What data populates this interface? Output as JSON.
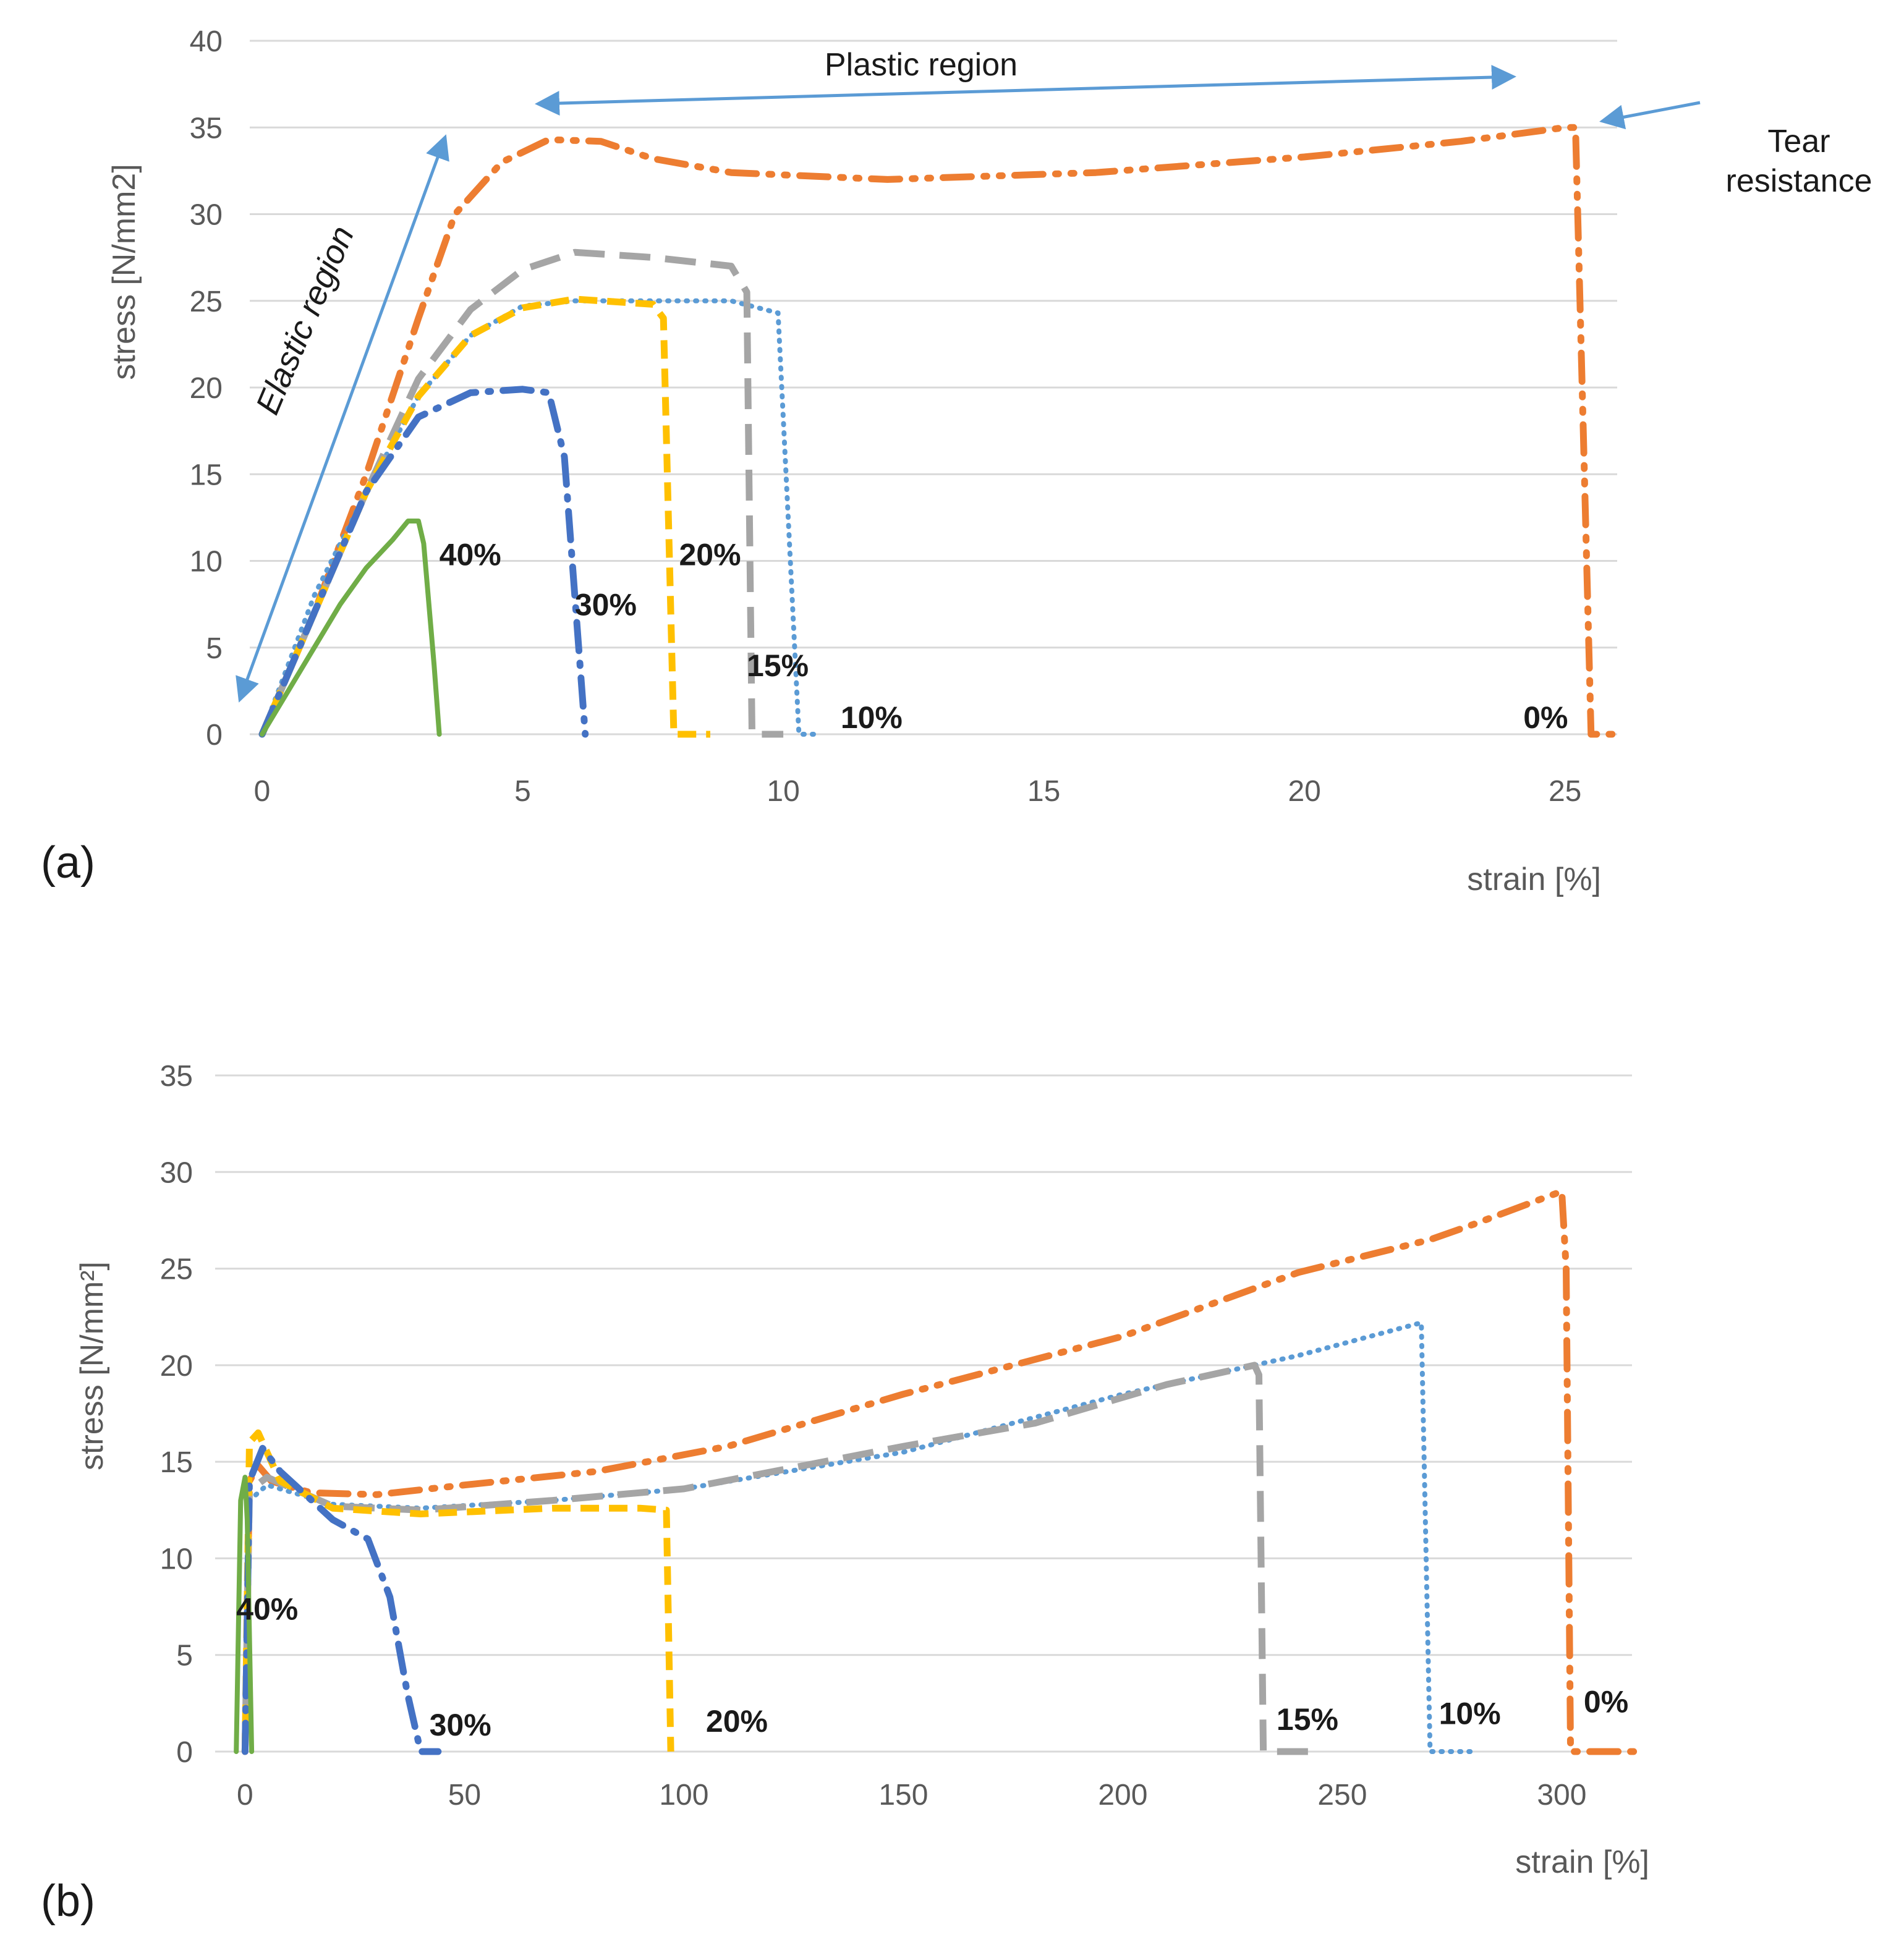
{
  "colors": {
    "s0": "#ed7d31",
    "s10": "#5b9bd5",
    "s15": "#a5a5a5",
    "s20": "#ffc000",
    "s30": "#4472c4",
    "s40": "#70ad47",
    "annotation": "#5b9bd5"
  },
  "chart_data": [
    {
      "panel": "(a)",
      "type": "line",
      "xlabel": "strain [%]",
      "ylabel": "stress [N/mm2]",
      "xlim": [
        0,
        26
      ],
      "ylim": [
        0,
        40
      ],
      "xticks": [
        0,
        5,
        10,
        15,
        20,
        25
      ],
      "yticks": [
        0,
        5,
        10,
        15,
        20,
        25,
        30,
        35,
        40
      ],
      "grid": true,
      "annotations": {
        "plastic": "Plastic region",
        "elastic": "Elastic region",
        "tear_line1": "Tear",
        "tear_line2": "resistance"
      },
      "series": [
        {
          "name": "0%",
          "key": "s0",
          "points": [
            [
              0,
              0
            ],
            [
              1,
              7
            ],
            [
              2,
              15
            ],
            [
              3,
              24
            ],
            [
              3.7,
              30
            ],
            [
              4.6,
              33
            ],
            [
              5.5,
              34.3
            ],
            [
              6.5,
              34.2
            ],
            [
              7.5,
              33.2
            ],
            [
              9,
              32.4
            ],
            [
              12,
              32
            ],
            [
              16,
              32.4
            ],
            [
              20,
              33.3
            ],
            [
              23,
              34.2
            ],
            [
              25,
              35
            ],
            [
              25.2,
              35
            ],
            [
              25.5,
              0
            ],
            [
              26,
              0
            ]
          ],
          "label": {
            "text": "0%",
            "x": 24.2,
            "y": 1
          }
        },
        {
          "name": "10%",
          "key": "s10",
          "points": [
            [
              0,
              0
            ],
            [
              1,
              8
            ],
            [
              2,
              14
            ],
            [
              3,
              19.5
            ],
            [
              4,
              23
            ],
            [
              5,
              24.7
            ],
            [
              6,
              25
            ],
            [
              9,
              25
            ],
            [
              9.9,
              24.3
            ],
            [
              10.3,
              0
            ],
            [
              10.6,
              0
            ]
          ],
          "label": {
            "text": "10%",
            "x": 11.1,
            "y": 1
          }
        },
        {
          "name": "15%",
          "key": "s15",
          "points": [
            [
              0,
              0
            ],
            [
              1,
              7
            ],
            [
              2,
              14
            ],
            [
              3,
              20.5
            ],
            [
              4,
              24.5
            ],
            [
              5,
              26.8
            ],
            [
              6,
              27.8
            ],
            [
              7.5,
              27.5
            ],
            [
              9,
              27
            ],
            [
              9.3,
              25.5
            ],
            [
              9.4,
              0
            ],
            [
              10,
              0
            ]
          ],
          "label": {
            "text": "15%",
            "x": 9.3,
            "y": 4
          }
        },
        {
          "name": "20%",
          "key": "s20",
          "points": [
            [
              0,
              0
            ],
            [
              1,
              7
            ],
            [
              2,
              14
            ],
            [
              3,
              19.5
            ],
            [
              4,
              23
            ],
            [
              5,
              24.6
            ],
            [
              6,
              25.1
            ],
            [
              7.5,
              24.8
            ],
            [
              7.7,
              24
            ],
            [
              7.9,
              0
            ],
            [
              8.6,
              0
            ]
          ],
          "label": {
            "text": "20%",
            "x": 8,
            "y": 10.4
          }
        },
        {
          "name": "30%",
          "key": "s30",
          "points": [
            [
              0,
              0
            ],
            [
              1,
              7
            ],
            [
              2,
              14
            ],
            [
              3,
              18.3
            ],
            [
              4,
              19.7
            ],
            [
              5,
              19.9
            ],
            [
              5.5,
              19.7
            ],
            [
              5.8,
              16
            ],
            [
              6,
              8
            ],
            [
              6.2,
              0
            ]
          ],
          "label": {
            "text": "30%",
            "x": 6.0,
            "y": 7.5
          }
        },
        {
          "name": "40%",
          "key": "s40",
          "points": [
            [
              0,
              0
            ],
            [
              0.5,
              2.5
            ],
            [
              1,
              5
            ],
            [
              1.5,
              7.5
            ],
            [
              2,
              9.6
            ],
            [
              2.5,
              11.2
            ],
            [
              2.8,
              12.3
            ],
            [
              3,
              12.3
            ],
            [
              3.1,
              11
            ],
            [
              3.3,
              4
            ],
            [
              3.4,
              0
            ]
          ],
          "label": {
            "text": "40%",
            "x": 3.4,
            "y": 10.4
          }
        }
      ]
    },
    {
      "panel": "(b)",
      "type": "line",
      "xlabel": "strain [%]",
      "ylabel": "stress [N/mm²]",
      "xlim": [
        -4,
        316
      ],
      "ylim": [
        0,
        35
      ],
      "xticks": [
        0,
        50,
        100,
        150,
        200,
        250,
        300
      ],
      "yticks": [
        0,
        5,
        10,
        15,
        20,
        25,
        30,
        35
      ],
      "grid": true,
      "series": [
        {
          "name": "0%",
          "key": "s0",
          "points": [
            [
              0,
              0
            ],
            [
              1,
              14
            ],
            [
              3,
              14.8
            ],
            [
              6,
              14
            ],
            [
              15,
              13.4
            ],
            [
              30,
              13.3
            ],
            [
              50,
              13.8
            ],
            [
              80,
              14.5
            ],
            [
              110,
              15.8
            ],
            [
              150,
              18.5
            ],
            [
              200,
              21.5
            ],
            [
              240,
              24.8
            ],
            [
              270,
              26.5
            ],
            [
              280,
              27.3
            ],
            [
              300,
              29
            ],
            [
              301,
              25
            ],
            [
              302,
              0
            ],
            [
              318,
              0
            ]
          ],
          "label": {
            "text": "0%",
            "x": 305,
            "y": 2.6
          }
        },
        {
          "name": "10%",
          "key": "s10",
          "points": [
            [
              0,
              0
            ],
            [
              1,
              13
            ],
            [
              5,
              13.8
            ],
            [
              20,
              12.8
            ],
            [
              40,
              12.6
            ],
            [
              70,
              13
            ],
            [
              100,
              13.6
            ],
            [
              150,
              15.5
            ],
            [
              200,
              18.5
            ],
            [
              240,
              20.5
            ],
            [
              268,
              22.2
            ],
            [
              270,
              0
            ],
            [
              280,
              0
            ]
          ],
          "label": {
            "text": "10%",
            "x": 272,
            "y": 2
          }
        },
        {
          "name": "15%",
          "key": "s15",
          "points": [
            [
              0,
              0
            ],
            [
              1,
              13.5
            ],
            [
              5,
              14.2
            ],
            [
              20,
              12.7
            ],
            [
              40,
              12.5
            ],
            [
              70,
              13
            ],
            [
              100,
              13.6
            ],
            [
              150,
              15.8
            ],
            [
              180,
              17
            ],
            [
              210,
              19
            ],
            [
              230,
              20
            ],
            [
              231,
              19.5
            ],
            [
              232,
              0
            ],
            [
              243,
              0
            ]
          ],
          "label": {
            "text": "15%",
            "x": 235,
            "y": 1.7
          }
        },
        {
          "name": "20%",
          "key": "s20",
          "points": [
            [
              0,
              0
            ],
            [
              1,
              16
            ],
            [
              3,
              16.5
            ],
            [
              8,
              14
            ],
            [
              20,
              12.6
            ],
            [
              40,
              12.3
            ],
            [
              70,
              12.6
            ],
            [
              90,
              12.6
            ],
            [
              96,
              12.5
            ],
            [
              97,
              0
            ]
          ],
          "label": {
            "text": "20%",
            "x": 105,
            "y": 1.6
          }
        },
        {
          "name": "30%",
          "key": "s30",
          "points": [
            [
              0,
              0
            ],
            [
              1,
              14
            ],
            [
              4,
              15.7
            ],
            [
              8,
              14.5
            ],
            [
              20,
              12
            ],
            [
              28,
              11
            ],
            [
              33,
              8
            ],
            [
              37,
              3
            ],
            [
              40,
              0
            ],
            [
              44,
              0
            ]
          ],
          "label": {
            "text": "30%",
            "x": 42,
            "y": 1.4
          }
        },
        {
          "name": "40%",
          "key": "s40",
          "points": [
            [
              -2,
              0
            ],
            [
              -1,
              13
            ],
            [
              0,
              14.2
            ],
            [
              0.5,
              12
            ],
            [
              1.5,
              0
            ]
          ],
          "label": {
            "text": "40%",
            "x": -2,
            "y": 7.4
          }
        }
      ]
    }
  ],
  "panel_labels": [
    "(a)",
    "(b)"
  ]
}
